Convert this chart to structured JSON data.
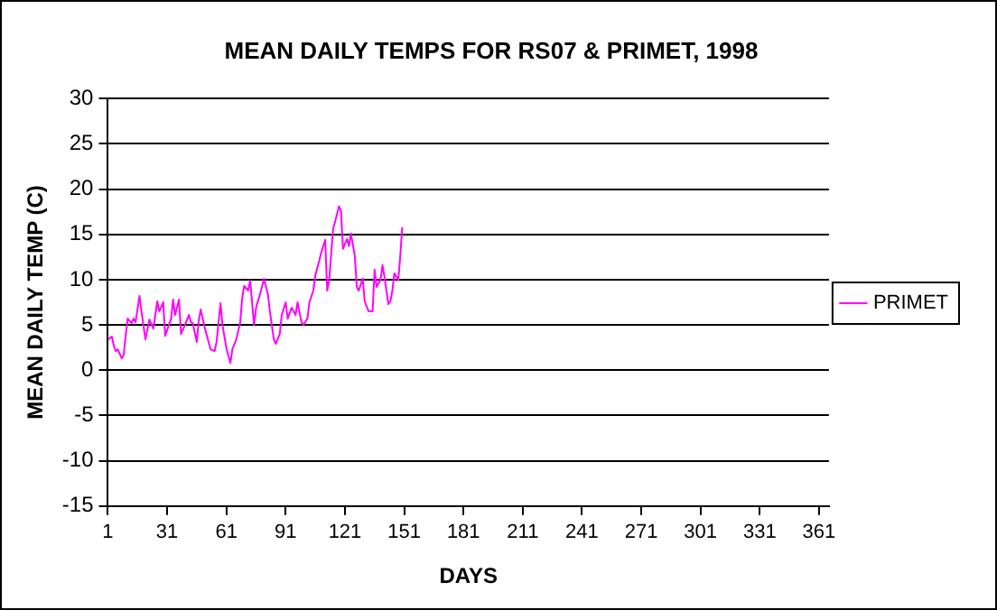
{
  "chart_data": {
    "type": "line",
    "title": "MEAN DAILY TEMPS FOR RS07 & PRIMET, 1998",
    "xlabel": "DAYS",
    "ylabel": "MEAN DAILY TEMP (C)",
    "xlim": [
      1,
      366
    ],
    "xticks": [
      1,
      31,
      61,
      91,
      121,
      151,
      181,
      211,
      241,
      271,
      301,
      331,
      361
    ],
    "ylim": [
      -15,
      30
    ],
    "yticks": [
      -15,
      -10,
      -5,
      0,
      5,
      10,
      15,
      20,
      25,
      30
    ],
    "grid": "y",
    "legend": "right",
    "marker": "none",
    "line_style": "solid",
    "series": [
      {
        "name": "PRIMET",
        "color": "#ff00ff",
        "x": [
          1,
          3,
          4,
          5,
          6,
          8,
          9,
          10,
          11,
          13,
          14,
          15,
          17,
          18,
          20,
          22,
          24,
          26,
          27,
          29,
          30,
          33,
          34,
          35,
          37,
          38,
          40,
          42,
          43,
          44,
          46,
          47,
          48,
          50,
          52,
          53,
          55,
          56,
          58,
          59,
          61,
          63,
          64,
          66,
          68,
          69,
          70,
          72,
          73,
          75,
          76,
          78,
          79,
          80,
          82,
          83,
          85,
          86,
          88,
          89,
          91,
          92,
          93,
          94,
          96,
          97,
          99,
          100,
          102,
          103,
          105,
          106,
          108,
          109,
          111,
          112,
          113,
          115,
          116,
          118,
          119,
          120,
          122,
          123,
          124,
          126,
          127,
          128,
          130,
          131,
          133,
          135,
          136,
          137,
          139,
          140,
          141,
          143,
          144,
          145,
          146,
          148,
          149,
          150
        ],
        "values": [
          3.4,
          3.7,
          2.7,
          2.1,
          2.3,
          1.3,
          1.7,
          3.8,
          5.7,
          5.2,
          5.7,
          5.3,
          8.2,
          6.5,
          3.4,
          5.6,
          4.6,
          7.6,
          6.5,
          7.5,
          3.8,
          5.7,
          7.8,
          6.1,
          7.8,
          4.0,
          5.0,
          6.1,
          5.3,
          5.2,
          3.1,
          5.5,
          6.7,
          4.7,
          3.1,
          2.3,
          2.1,
          3.1,
          7.4,
          5.0,
          2.4,
          0.8,
          2.3,
          3.4,
          5.3,
          8.0,
          9.3,
          8.8,
          9.9,
          5.0,
          6.9,
          8.4,
          9.2,
          10.1,
          8.4,
          6.5,
          3.4,
          2.9,
          4.0,
          6.1,
          7.5,
          5.7,
          6.3,
          6.9,
          6.1,
          7.5,
          5.3,
          5.0,
          5.7,
          7.5,
          8.8,
          10.5,
          12.1,
          13.0,
          14.4,
          8.8,
          9.9,
          15.6,
          16.4,
          18.1,
          17.6,
          13.4,
          14.5,
          13.7,
          15.1,
          12.6,
          9.2,
          8.8,
          10.1,
          7.6,
          6.5,
          6.5,
          11.1,
          9.2,
          10.0,
          11.6,
          10.3,
          7.3,
          7.6,
          8.8,
          10.7,
          10.0,
          12.6,
          15.8
        ]
      }
    ]
  }
}
